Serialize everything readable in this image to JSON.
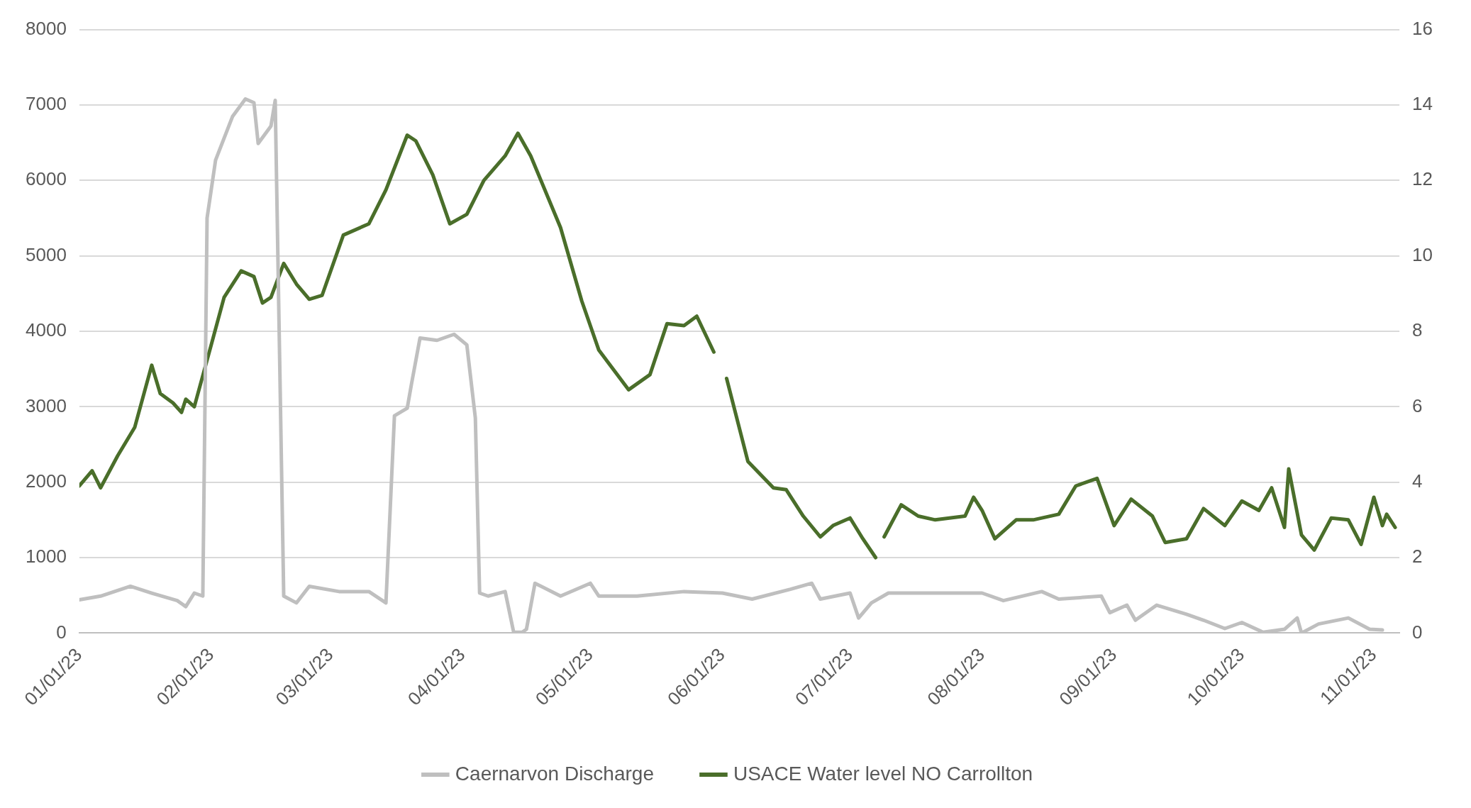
{
  "chart_data": {
    "type": "line",
    "xlim": [
      "2023-01-01",
      "2023-11-07"
    ],
    "xticks": [
      {
        "value": "2023-01-01",
        "label": "01/01/23"
      },
      {
        "value": "2023-02-01",
        "label": "02/01/23"
      },
      {
        "value": "2023-03-01",
        "label": "03/01/23"
      },
      {
        "value": "2023-04-01",
        "label": "04/01/23"
      },
      {
        "value": "2023-05-01",
        "label": "05/01/23"
      },
      {
        "value": "2023-06-01",
        "label": "06/01/23"
      },
      {
        "value": "2023-07-01",
        "label": "07/01/23"
      },
      {
        "value": "2023-08-01",
        "label": "08/01/23"
      },
      {
        "value": "2023-09-01",
        "label": "09/01/23"
      },
      {
        "value": "2023-10-01",
        "label": "10/01/23"
      },
      {
        "value": "2023-11-01",
        "label": "11/01/23"
      }
    ],
    "ylim": [
      0,
      8000
    ],
    "yticks": [
      0,
      1000,
      2000,
      3000,
      4000,
      5000,
      6000,
      7000,
      8000
    ],
    "y2lim": [
      0,
      16
    ],
    "y2ticks": [
      0,
      2,
      4,
      6,
      8,
      10,
      12,
      14,
      16
    ],
    "grid": "y",
    "legend": "bottom",
    "marker": "none",
    "line_style": "solid",
    "series": [
      {
        "name": "Caernarvon Discharge",
        "color": "#bfbfbf",
        "x": [
          "2023-01-01",
          "2023-01-06",
          "2023-01-13",
          "2023-01-18",
          "2023-01-24",
          "2023-01-26",
          "2023-01-28",
          "2023-01-30",
          "2023-01-31",
          "2023-02-02",
          "2023-02-06",
          "2023-02-09",
          "2023-02-11",
          "2023-02-12",
          "2023-02-15",
          "2023-02-16",
          "2023-02-18",
          "2023-02-21",
          "2023-02-24",
          "2023-03-03",
          "2023-03-10",
          "2023-03-14",
          "2023-03-16",
          "2023-03-19",
          "2023-03-20",
          "2023-03-22",
          "2023-03-26",
          "2023-03-30",
          "2023-04-02",
          "2023-04-04",
          "2023-04-05",
          "2023-04-07",
          "2023-04-11",
          "2023-04-13",
          "2023-04-15",
          "2023-04-16",
          "2023-04-18",
          "2023-04-24",
          "2023-05-01",
          "2023-05-03",
          "2023-05-12",
          "2023-05-23",
          "2023-06-01",
          "2023-06-08",
          "2023-06-17",
          "2023-06-22",
          "2023-06-24",
          "2023-07-01",
          "2023-07-03",
          "2023-07-06",
          "2023-07-10",
          "2023-07-19",
          "2023-08-01",
          "2023-08-06",
          "2023-08-15",
          "2023-08-19",
          "2023-08-29",
          "2023-08-31",
          "2023-09-04",
          "2023-09-06",
          "2023-09-11",
          "2023-09-18",
          "2023-09-22",
          "2023-09-27",
          "2023-10-01",
          "2023-10-06",
          "2023-10-11",
          "2023-10-14",
          "2023-10-15",
          "2023-10-19",
          "2023-10-26",
          "2023-10-31",
          "2023-11-03"
        ],
        "values": [
          440,
          490,
          620,
          530,
          430,
          350,
          530,
          490,
          5500,
          6270,
          6850,
          7080,
          7030,
          6490,
          6720,
          7060,
          490,
          400,
          620,
          550,
          550,
          400,
          2880,
          2980,
          3300,
          3910,
          3880,
          3960,
          3820,
          2850,
          530,
          490,
          550,
          10,
          10,
          50,
          660,
          490,
          660,
          490,
          490,
          550,
          530,
          450,
          580,
          660,
          450,
          530,
          200,
          400,
          530,
          530,
          530,
          430,
          550,
          450,
          490,
          270,
          370,
          170,
          370,
          250,
          170,
          60,
          140,
          10,
          50,
          200,
          0,
          120,
          200,
          50,
          40
        ]
      },
      {
        "name": "USACE Water level NO Carrollton",
        "color": "#4a6e2a",
        "axis": "y2",
        "x": [
          "2023-01-01",
          "2023-01-04",
          "2023-01-06",
          "2023-01-10",
          "2023-01-14",
          "2023-01-18",
          "2023-01-20",
          "2023-01-23",
          "2023-01-25",
          "2023-01-26",
          "2023-01-28",
          "2023-02-01",
          "2023-02-04",
          "2023-02-08",
          "2023-02-11",
          "2023-02-13",
          "2023-02-15",
          "2023-02-18",
          "2023-02-21",
          "2023-02-24",
          "2023-02-27",
          "2023-03-04",
          "2023-03-10",
          "2023-03-14",
          "2023-03-19",
          "2023-03-21",
          "2023-03-25",
          "2023-03-29",
          "2023-04-02",
          "2023-04-06",
          "2023-04-11",
          "2023-04-14",
          "2023-04-17",
          "2023-04-24",
          "2023-04-29",
          "2023-05-03",
          "2023-05-10",
          "2023-05-15",
          "2023-05-19",
          "2023-05-23",
          "2023-05-26",
          "2023-05-30",
          "2023-05-31",
          "2023-06-02",
          "2023-06-07",
          "2023-06-13",
          "2023-06-16",
          "2023-06-20",
          "2023-06-24",
          "2023-06-27",
          "2023-07-01",
          "2023-07-04",
          "2023-07-07",
          "2023-07-08",
          "2023-07-09",
          "2023-07-13",
          "2023-07-17",
          "2023-07-21",
          "2023-07-28",
          "2023-07-30",
          "2023-08-01",
          "2023-08-04",
          "2023-08-09",
          "2023-08-13",
          "2023-08-19",
          "2023-08-23",
          "2023-08-28",
          "2023-09-01",
          "2023-09-05",
          "2023-09-10",
          "2023-09-13",
          "2023-09-18",
          "2023-09-22",
          "2023-09-27",
          "2023-10-01",
          "2023-10-05",
          "2023-10-08",
          "2023-10-11",
          "2023-10-12",
          "2023-10-15",
          "2023-10-18",
          "2023-10-22",
          "2023-10-26",
          "2023-10-29",
          "2023-11-01",
          "2023-11-03",
          "2023-11-04",
          "2023-11-06"
        ],
        "values": [
          3.9,
          4.3,
          3.85,
          4.7,
          5.45,
          7.1,
          6.35,
          6.1,
          5.85,
          6.2,
          6.0,
          7.65,
          8.9,
          9.6,
          9.45,
          8.75,
          8.9,
          9.8,
          9.25,
          8.85,
          8.95,
          10.55,
          10.85,
          11.75,
          13.2,
          13.05,
          12.15,
          10.85,
          11.1,
          12.0,
          12.65,
          13.25,
          12.65,
          10.75,
          8.8,
          7.5,
          6.45,
          6.85,
          8.2,
          8.15,
          8.4,
          7.45,
          null,
          6.75,
          4.55,
          3.85,
          3.8,
          3.1,
          2.55,
          2.85,
          3.05,
          2.5,
          2.0,
          null,
          2.55,
          3.4,
          3.1,
          3.0,
          3.1,
          3.6,
          3.25,
          2.5,
          3.0,
          3.0,
          3.15,
          3.9,
          4.1,
          2.85,
          3.55,
          3.1,
          2.4,
          2.5,
          3.3,
          2.85,
          3.5,
          3.25,
          3.85,
          2.8,
          4.35,
          2.6,
          2.2,
          3.05,
          3.0,
          2.35,
          3.6,
          2.85,
          3.15,
          2.8
        ]
      }
    ]
  }
}
